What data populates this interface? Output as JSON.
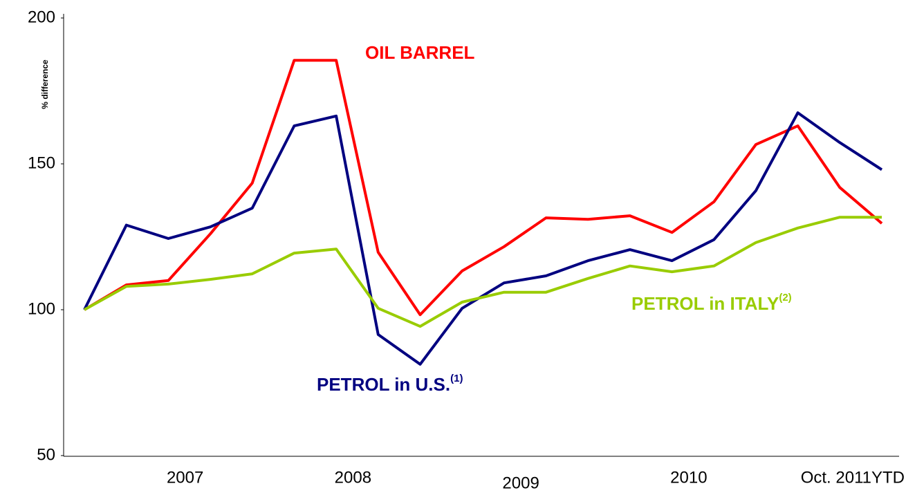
{
  "chart_data": {
    "type": "line",
    "y_label": "% difference",
    "categories": [
      null,
      null,
      "2007",
      null,
      null,
      null,
      "2008",
      null,
      null,
      null,
      "2009",
      null,
      null,
      null,
      "2010",
      null,
      null,
      null,
      "Oct. 2011YTD",
      null
    ],
    "series": [
      {
        "name": "OIL BARREL",
        "color": "#ff0000",
        "values": [
          100,
          108.5,
          110,
          126,
          143.4,
          185.5,
          185.5,
          119.7,
          98.3,
          113.3,
          121.6,
          131.5,
          131,
          132.2,
          126.5,
          137,
          156.6,
          163,
          141.9,
          129.6
        ]
      },
      {
        "name": "PETROL in U.S.",
        "footnote": "(1)",
        "color": "#000080",
        "values": [
          100,
          129,
          124.4,
          128.4,
          134.8,
          163,
          166.4,
          91.5,
          81.3,
          100.5,
          109.2,
          111.6,
          116.8,
          120.6,
          116.8,
          124,
          140.8,
          167.5,
          157.3,
          148
        ]
      },
      {
        "name": "PETROL in ITALY",
        "footnote": "(2)",
        "color": "#99cc00",
        "values": [
          100,
          108,
          108.8,
          110.4,
          112.3,
          119.4,
          120.8,
          100.5,
          94.3,
          102.6,
          106,
          106,
          110.7,
          115,
          113,
          115,
          123,
          128,
          131.7,
          131.7
        ]
      }
    ],
    "ylim": [
      50,
      200
    ],
    "yticks": [
      50,
      100,
      150,
      200
    ],
    "grid": false
  }
}
